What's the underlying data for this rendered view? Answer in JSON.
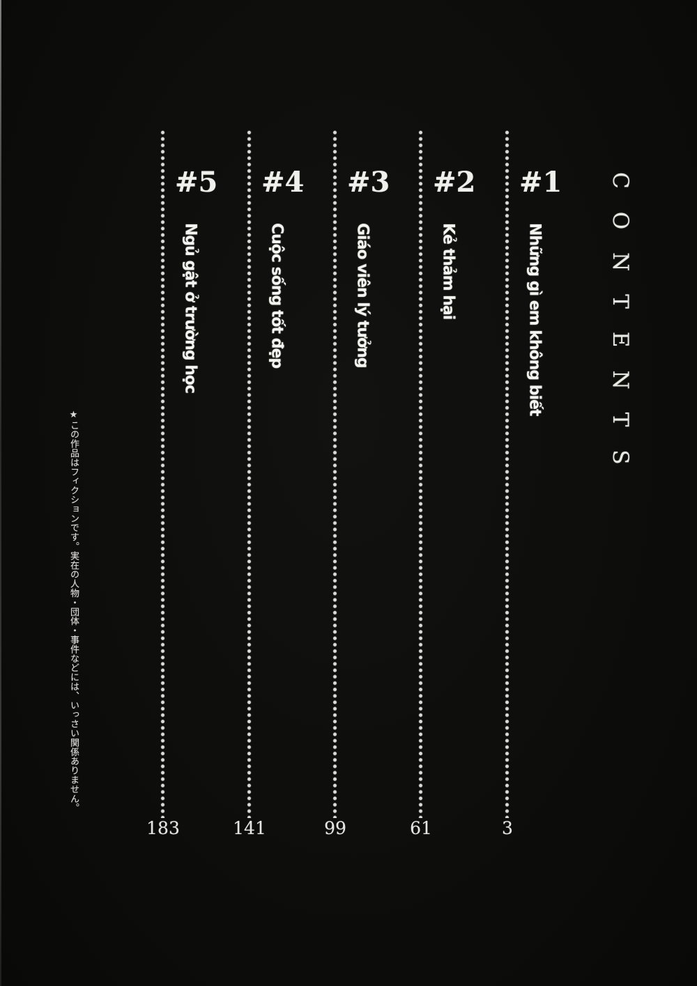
{
  "page": {
    "title_vertical": "CONTENTS",
    "background_color": "#0c0c0a",
    "text_color": "#f4f4f0",
    "dot_color": "#dcdcd8"
  },
  "chapters": [
    {
      "number": "#1",
      "title": "Những gì em không biết",
      "page": "3"
    },
    {
      "number": "#2",
      "title": "Kẻ thảm hại",
      "page": "61"
    },
    {
      "number": "#3",
      "title": "Giáo viên lý tưởng",
      "page": "99"
    },
    {
      "number": "#4",
      "title": "Cuộc sống tốt đẹp",
      "page": "141"
    },
    {
      "number": "#5",
      "title": "Ngủ gật ở trường học",
      "page": "183"
    }
  ],
  "disclaimer": "★この作品はフィクションです。実在の人物・団体・事件などには、いっさい関係ありません。"
}
